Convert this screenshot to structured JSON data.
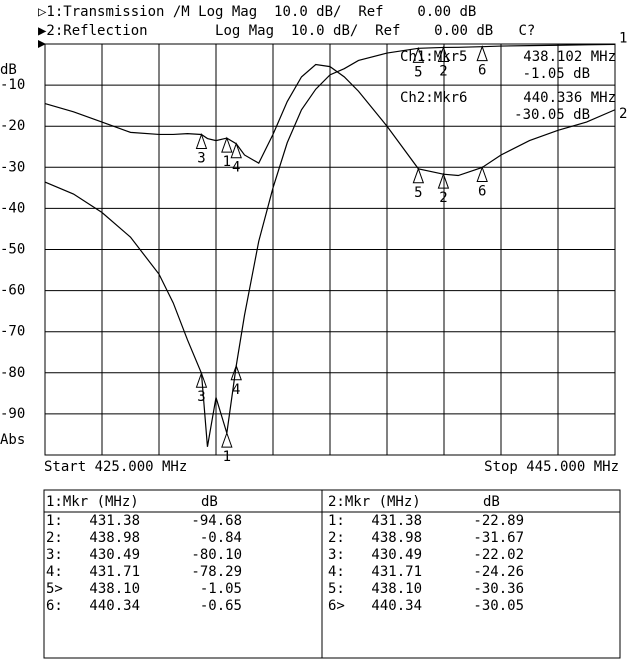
{
  "chart_data": {
    "type": "line",
    "series": [
      {
        "prefix": "▷1:",
        "name": "Transmission",
        "format": " /M Log Mag  10.0 dB/  Ref    0.00 dB",
        "tag": "1",
        "color": "#000000",
        "values": [
          -33.6,
          -36.5,
          -41,
          -47,
          -56,
          -63,
          -72,
          -80.1,
          -98,
          -86,
          -94.68,
          -78.29,
          -66,
          -48,
          -35,
          -24,
          -16,
          -11,
          -7.5,
          -6,
          -4,
          -2.2,
          -1.05,
          -0.84,
          -0.8,
          -0.65,
          -0.5,
          -0.4,
          -0.3,
          -0.2,
          -0.1
        ],
        "markers": [
          {
            "label": "1",
            "x": 431.38,
            "y": -94.68
          },
          {
            "label": "2",
            "x": 438.98,
            "y": -0.84
          },
          {
            "label": "3",
            "x": 430.49,
            "y": -80.1
          },
          {
            "label": "4",
            "x": 431.71,
            "y": -78.29
          },
          {
            "label": "5",
            "x": 438.1,
            "y": -1.05
          },
          {
            "label": "6",
            "x": 440.34,
            "y": -0.65
          }
        ]
      },
      {
        "prefix": "▶2:",
        "name": "Reflection",
        "format": "        Log Mag  10.0 dB/  Ref    0.00 dB   C?",
        "tag": "2",
        "color": "#000000",
        "values": [
          -14.5,
          -16.5,
          -19,
          -21.5,
          -22,
          -22,
          -21.8,
          -22.02,
          -23,
          -23.5,
          -22.89,
          -24.26,
          -27,
          -29,
          -22,
          -14,
          -8,
          -5,
          -5.5,
          -8,
          -11.5,
          -20,
          -30.36,
          -31.67,
          -32,
          -30.05,
          -27,
          -23.5,
          -21,
          -19,
          -16
        ],
        "markers": [
          {
            "label": "2",
            "x": 438.98,
            "y": -31.67
          },
          {
            "label": "3",
            "x": 430.49,
            "y": -22.02
          },
          {
            "label": "1",
            "x": 431.38,
            "y": -22.89
          },
          {
            "label": "4",
            "x": 431.71,
            "y": -24.26
          },
          {
            "label": "5",
            "x": 438.1,
            "y": -30.36
          },
          {
            "label": "6",
            "x": 440.34,
            "y": -30.05
          }
        ]
      }
    ],
    "x": [
      425,
      426,
      427,
      428,
      429,
      429.5,
      430,
      430.49,
      430.7,
      431,
      431.38,
      431.71,
      432,
      432.5,
      433,
      433.5,
      434,
      434.5,
      435,
      435.5,
      436,
      437,
      438.1,
      438.98,
      439.5,
      440.34,
      441,
      442,
      443,
      444,
      445
    ],
    "xlim": [
      425,
      445
    ],
    "ylim": [
      -100,
      0
    ],
    "yticks": [
      -10,
      -20,
      -30,
      -40,
      -50,
      -60,
      -70,
      -80,
      -90
    ],
    "ylabel": "dB",
    "yformat": "Abs",
    "start_label": "Start 425.000 MHz",
    "stop_label": "Stop 445.000 MHz",
    "readouts": [
      {
        "label": "Ch1:Mkr5",
        "freq": "438.102 MHz",
        "value": "-1.05 dB"
      },
      {
        "label": "Ch2:Mkr6",
        "freq": "440.336 MHz",
        "value": "-30.05 dB"
      }
    ],
    "grid": true
  },
  "tables": [
    {
      "header": [
        "1:Mkr (MHz)",
        "dB"
      ],
      "rows": [
        [
          "1:",
          "431.38",
          "-94.68"
        ],
        [
          "2:",
          "438.98",
          "-0.84"
        ],
        [
          "3:",
          "430.49",
          "-80.10"
        ],
        [
          "4:",
          "431.71",
          "-78.29"
        ],
        [
          "5>",
          "438.10",
          "-1.05"
        ],
        [
          "6:",
          "440.34",
          "-0.65"
        ]
      ]
    },
    {
      "header": [
        "2:Mkr (MHz)",
        "dB"
      ],
      "rows": [
        [
          "1:",
          "431.38",
          "-22.89"
        ],
        [
          "2:",
          "438.98",
          "-31.67"
        ],
        [
          "3:",
          "430.49",
          "-22.02"
        ],
        [
          "4:",
          "431.71",
          "-24.26"
        ],
        [
          "5:",
          "438.10",
          "-30.36"
        ],
        [
          "6>",
          "440.34",
          "-30.05"
        ]
      ]
    }
  ]
}
